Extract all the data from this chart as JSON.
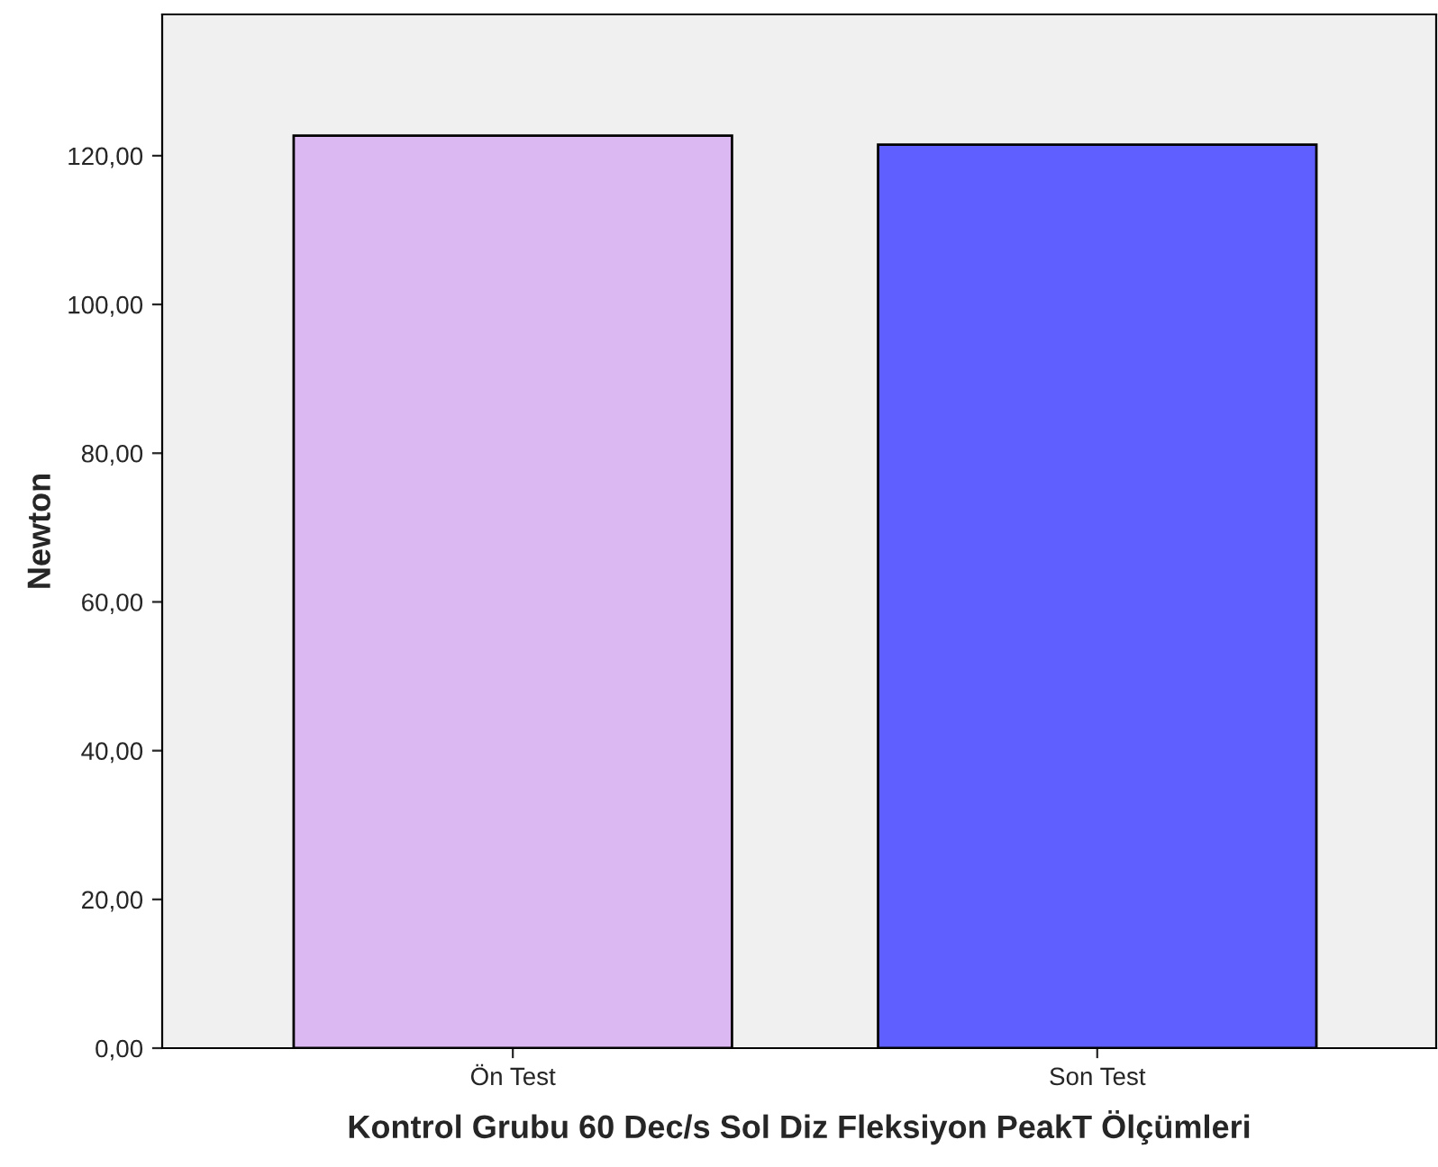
{
  "chart_data": {
    "type": "bar",
    "xlabel": "Kontrol Grubu 60 Dec/s Sol Diz Fleksiyon PeakT Ölçümleri",
    "ylabel": "Newton",
    "categories": [
      "Ön Test",
      "Son Test"
    ],
    "values": [
      122.7,
      121.5
    ],
    "colors": [
      "#dcb8f2",
      "#5f5fff"
    ],
    "ylim": [
      0,
      139
    ],
    "yticks": [
      {
        "value": 0,
        "label": "0,00"
      },
      {
        "value": 20,
        "label": "20,00"
      },
      {
        "value": 40,
        "label": "40,00"
      },
      {
        "value": 60,
        "label": "60,00"
      },
      {
        "value": 80,
        "label": "80,00"
      },
      {
        "value": 100,
        "label": "100,00"
      },
      {
        "value": 120,
        "label": "120,00"
      }
    ],
    "grid": false
  }
}
